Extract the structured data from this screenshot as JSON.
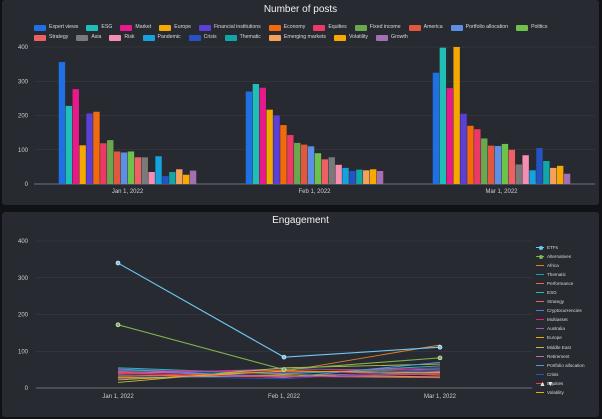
{
  "charts": [
    {
      "title": "Number of posts",
      "chart_data": {
        "type": "bar",
        "title": "Number of posts",
        "categories": [
          "Jan 1, 2022",
          "Feb 1, 2022",
          "Mar 1, 2022"
        ],
        "ylim": [
          0,
          400
        ],
        "yticks": [
          0,
          100,
          200,
          300,
          400
        ],
        "grid": true,
        "legend": "top",
        "series": [
          {
            "name": "Expert views",
            "color": "#1f6fe5",
            "values": [
              356,
              270,
              325
            ]
          },
          {
            "name": "ESG",
            "color": "#1fbfb8",
            "values": [
              228,
              292,
              398
            ]
          },
          {
            "name": "Market",
            "color": "#e8198b",
            "values": [
              277,
              281,
              280
            ]
          },
          {
            "name": "Europe",
            "color": "#f5a800",
            "values": [
              113,
              217,
              400
            ]
          },
          {
            "name": "Financial institutions",
            "color": "#5b3fd6",
            "values": [
              206,
              200,
              205
            ]
          },
          {
            "name": "Economy",
            "color": "#f26a0c",
            "values": [
              211,
              172,
              170
            ]
          },
          {
            "name": "Equities",
            "color": "#ec3a67",
            "values": [
              119,
              143,
              160
            ]
          },
          {
            "name": "Fixed income",
            "color": "#6aa84f",
            "values": [
              128,
              120,
              133
            ]
          },
          {
            "name": "America",
            "color": "#e2583e",
            "values": [
              95,
              115,
              112
            ]
          },
          {
            "name": "Portfolio allocation",
            "color": "#5c8fe6",
            "values": [
              92,
              110,
              111
            ]
          },
          {
            "name": "Politics",
            "color": "#6cc24a",
            "values": [
              95,
              90,
              117
            ]
          },
          {
            "name": "Strategy",
            "color": "#ef5f63",
            "values": [
              78,
              72,
              100
            ]
          },
          {
            "name": "Asia",
            "color": "#7a7a7a",
            "values": [
              78,
              78,
              57
            ]
          },
          {
            "name": "Risk",
            "color": "#f48fb1",
            "values": [
              35,
              56,
              84
            ]
          },
          {
            "name": "Pandemic",
            "color": "#16a3dd",
            "values": [
              81,
              47,
              40
            ]
          },
          {
            "name": "Crisis",
            "color": "#2553c4",
            "values": [
              23,
              38,
              105
            ]
          },
          {
            "name": "Thematic",
            "color": "#13a6a6",
            "values": [
              35,
              42,
              67
            ]
          },
          {
            "name": "Emerging markets",
            "color": "#f5a15c",
            "values": [
              43,
              40,
              47
            ]
          },
          {
            "name": "Volatility",
            "color": "#f9a800",
            "values": [
              27,
              43,
              53
            ]
          },
          {
            "name": "Growth",
            "color": "#a46fb2",
            "values": [
              39,
              38,
              30
            ]
          }
        ]
      }
    },
    {
      "title": "Engagement",
      "chart_data": {
        "type": "line",
        "title": "Engagement",
        "x": [
          "Jan 1, 2022",
          "Feb 1, 2022",
          "Mar 1, 2022"
        ],
        "ylim": [
          0,
          400
        ],
        "yticks": [
          0,
          100,
          200,
          300,
          400
        ],
        "grid": true,
        "legend": "right",
        "series": [
          {
            "name": "ETFs",
            "color": "#6ec6f5",
            "markers": true,
            "values": [
              340,
              84,
              111
            ]
          },
          {
            "name": "Alternatives",
            "color": "#7fb54e",
            "markers": true,
            "values": [
              172,
              50,
              82
            ]
          },
          {
            "name": "Africa",
            "color": "#e57e27",
            "values": [
              30,
              45,
              117
            ]
          },
          {
            "name": "Thematic",
            "color": "#13a6a6",
            "values": [
              48,
              40,
              52
            ]
          },
          {
            "name": "Performance",
            "color": "#e26a4d",
            "values": [
              35,
              30,
              45
            ]
          },
          {
            "name": "ESG",
            "color": "#1fbfb8",
            "values": [
              55,
              38,
              60
            ]
          },
          {
            "name": "Strategy",
            "color": "#ef5f63",
            "values": [
              42,
              48,
              35
            ]
          },
          {
            "name": "Cryptocurrencies",
            "color": "#5b7bd6",
            "values": [
              25,
              35,
              40
            ]
          },
          {
            "name": "Multiasset",
            "color": "#e8198b",
            "values": [
              50,
              42,
              55
            ]
          },
          {
            "name": "Australia",
            "color": "#9b59b6",
            "values": [
              38,
              52,
              48
            ]
          },
          {
            "name": "Europe",
            "color": "#f5a800",
            "values": [
              28,
              36,
              30
            ]
          },
          {
            "name": "Middle East",
            "color": "#b8c34a",
            "values": [
              15,
              55,
              65
            ]
          },
          {
            "name": "Retirement",
            "color": "#c06ab8",
            "values": [
              45,
              32,
              28
            ]
          },
          {
            "name": "Portfolio allocation",
            "color": "#5c8fe6",
            "values": [
              52,
              28,
              70
            ]
          },
          {
            "name": "Crisis",
            "color": "#2553c4",
            "values": [
              33,
              25,
              50
            ]
          },
          {
            "name": "Equities",
            "color": "#ec3a67",
            "values": [
              40,
              30,
              38
            ]
          },
          {
            "name": "Volatility",
            "color": "#f9a800",
            "values": [
              22,
              46,
              42
            ]
          }
        ]
      }
    }
  ],
  "engagement_nav": "▲▼"
}
